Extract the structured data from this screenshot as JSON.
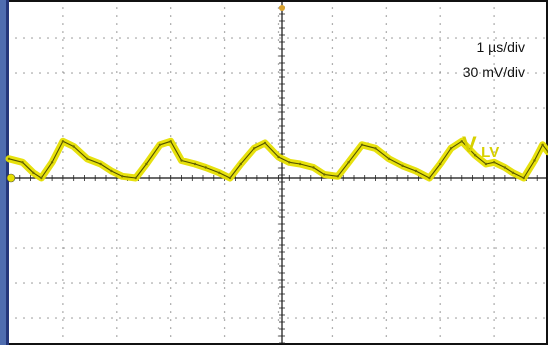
{
  "chart_data": {
    "type": "line",
    "title": "",
    "xlabel": "",
    "ylabel": "",
    "grid": true,
    "xlim": [
      0,
      10
    ],
    "ylim": [
      -4,
      4
    ],
    "annotations": {
      "time_scale": "1 µs/div",
      "voltage_scale": "30 mV/div"
    },
    "series": [
      {
        "name": "V",
        "name_subscript": "LV",
        "color": "#e6df00",
        "x": [
          0,
          0.25,
          0.45,
          0.6,
          0.8,
          1.0,
          1.2,
          1.45,
          1.7,
          1.9,
          2.1,
          2.35,
          2.55,
          2.8,
          3.0,
          3.2,
          3.45,
          3.65,
          3.9,
          4.1,
          4.3,
          4.55,
          4.75,
          5.0,
          5.2,
          5.4,
          5.65,
          5.85,
          6.1,
          6.3,
          6.55,
          6.8,
          7.05,
          7.3,
          7.55,
          7.8,
          8.0,
          8.2,
          8.4,
          8.65,
          8.85,
          9.0,
          9.2,
          9.35,
          9.55,
          9.75,
          9.9,
          10.0
        ],
        "y": [
          0.55,
          0.45,
          0.15,
          0.0,
          0.45,
          1.05,
          0.9,
          0.55,
          0.4,
          0.2,
          0.05,
          0.0,
          0.4,
          0.95,
          1.05,
          0.5,
          0.4,
          0.3,
          0.15,
          0.0,
          0.4,
          0.85,
          1.0,
          0.6,
          0.45,
          0.4,
          0.3,
          0.1,
          0.05,
          0.45,
          0.95,
          0.85,
          0.55,
          0.35,
          0.2,
          0.0,
          0.4,
          0.85,
          1.05,
          0.65,
          0.4,
          0.45,
          0.3,
          0.15,
          0.0,
          0.5,
          0.95,
          0.75
        ]
      }
    ]
  }
}
